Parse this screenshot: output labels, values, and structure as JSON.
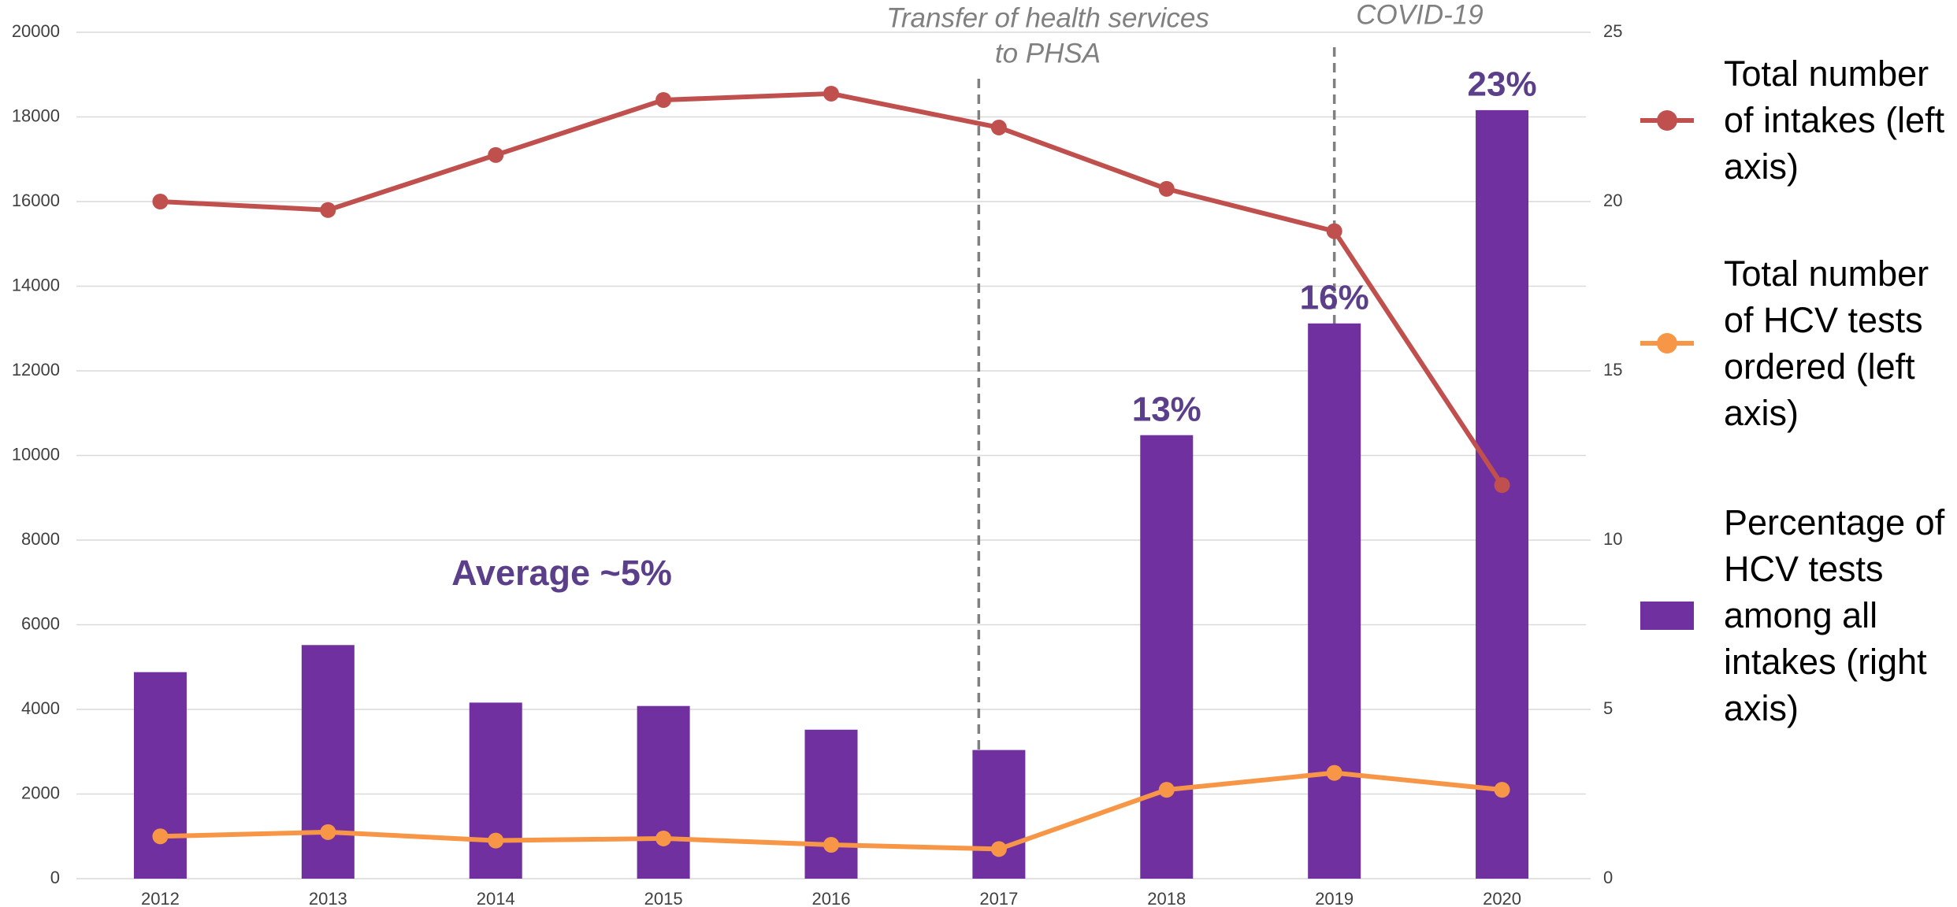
{
  "chart_data": {
    "type": "bar-line",
    "categories": [
      "2012",
      "2013",
      "2014",
      "2015",
      "2016",
      "2017",
      "2018",
      "2019",
      "2020"
    ],
    "series": [
      {
        "name": "Total number of intakes (left axis)",
        "type": "line",
        "color": "#c0504d",
        "axis": "y",
        "values": [
          16000,
          15800,
          17100,
          18400,
          18550,
          17750,
          16300,
          15300,
          9300
        ]
      },
      {
        "name": "Total number of HCV tests ordered (left axis)",
        "type": "line",
        "color": "#f79646",
        "axis": "y",
        "values": [
          1000,
          1100,
          900,
          950,
          800,
          700,
          2100,
          2500,
          2100
        ]
      },
      {
        "name": "Percentage of HCV tests among all intakes (right axis)",
        "type": "bar",
        "color": "#7030a0",
        "axis": "y2",
        "values": [
          6.1,
          6.9,
          5.2,
          5.1,
          4.4,
          3.8,
          13.1,
          16.4,
          22.7
        ],
        "value_labels": [
          null,
          null,
          null,
          null,
          null,
          null,
          "13%",
          "16%",
          "23%"
        ]
      }
    ],
    "ylim": [
      0,
      20000
    ],
    "yticks": [
      0,
      2000,
      4000,
      6000,
      8000,
      10000,
      12000,
      14000,
      16000,
      18000,
      20000
    ],
    "y2lim": [
      0,
      25
    ],
    "y2ticks": [
      0,
      5,
      10,
      15,
      20,
      25
    ],
    "grid": true,
    "legend": "right",
    "annotations": [
      {
        "lines": [
          "Average ~5%"
        ]
      },
      {
        "lines": [
          "Transfer of health services",
          "to PHSA"
        ]
      },
      {
        "lines": [
          "COVID-19"
        ]
      }
    ]
  }
}
